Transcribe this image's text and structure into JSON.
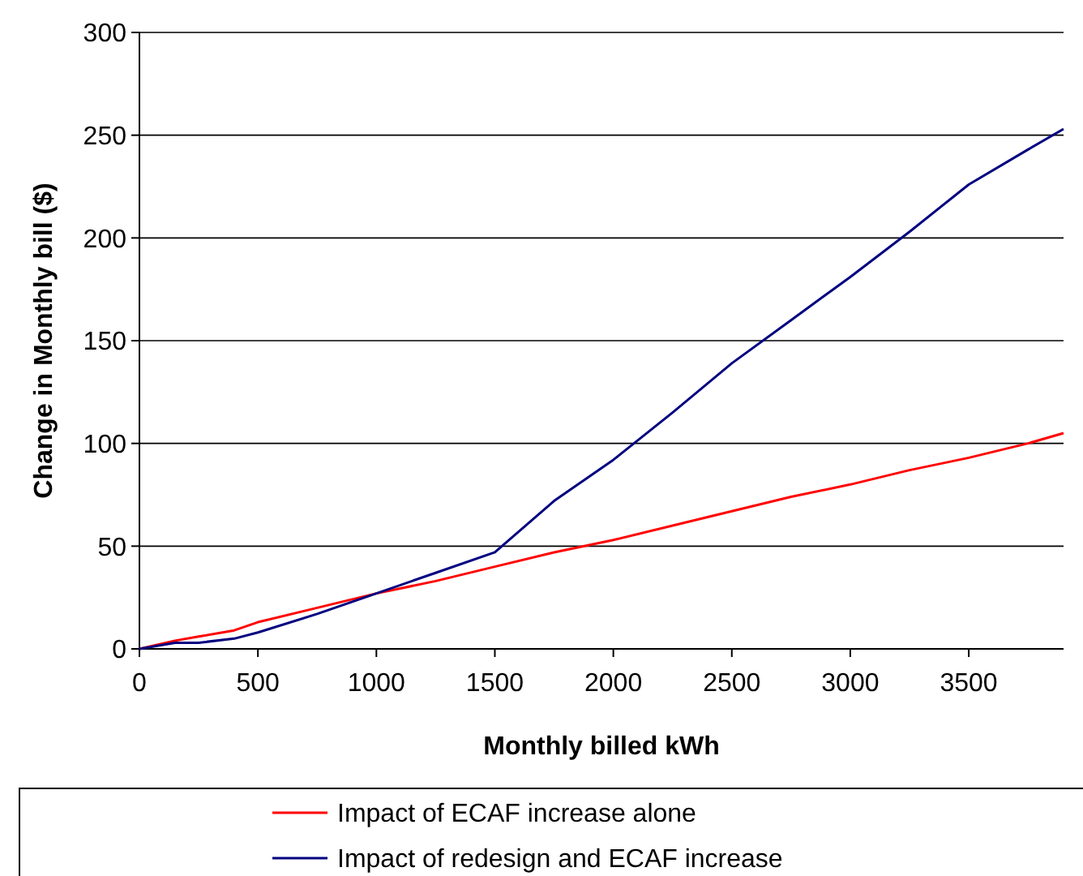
{
  "chart_data": {
    "type": "line",
    "xlabel": "Monthly billed kWh",
    "ylabel": "Change in Monthly bill ($)",
    "xlim": [
      0,
      3900
    ],
    "xticks": [
      0,
      500,
      1000,
      1500,
      2000,
      2500,
      3000,
      3500
    ],
    "ylim": [
      0,
      300
    ],
    "yticks": [
      0,
      50,
      100,
      150,
      200,
      250,
      300
    ],
    "grid": "y",
    "legend": "bottom",
    "marker": "none",
    "line_style": "solid",
    "series": [
      {
        "name": "Impact of ECAF increase alone",
        "color": "#ff0000",
        "x": [
          0,
          150,
          250,
          400,
          500,
          750,
          1000,
          1250,
          1500,
          1750,
          2000,
          2250,
          2500,
          2750,
          3000,
          3250,
          3500,
          3750,
          3900
        ],
        "values": [
          0,
          4,
          6,
          9,
          13,
          20,
          27,
          33,
          40,
          47,
          53,
          60,
          67,
          74,
          80,
          87,
          93,
          100,
          105
        ]
      },
      {
        "name": "Impact of redesign and ECAF increase",
        "color": "#000080",
        "x": [
          0,
          150,
          250,
          400,
          500,
          750,
          1000,
          1250,
          1500,
          1750,
          2000,
          2250,
          2500,
          2750,
          3000,
          3250,
          3500,
          3750,
          3900
        ],
        "values": [
          0,
          3,
          3,
          5,
          8,
          17,
          27,
          37,
          47,
          72,
          92,
          115,
          139,
          160,
          181,
          203,
          226,
          243,
          253
        ]
      }
    ]
  }
}
